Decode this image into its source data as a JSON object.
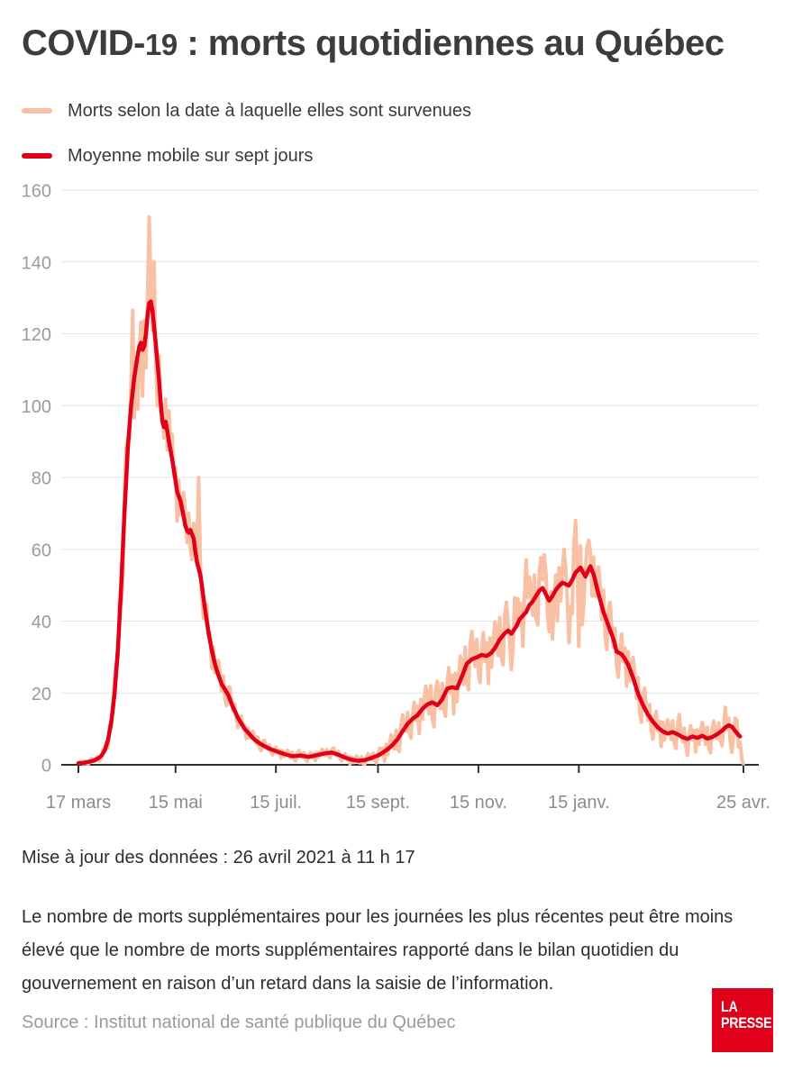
{
  "header": {
    "title_prefix": "COVID-",
    "title_number": "19",
    "title_suffix": " : morts quotidiennes au Québec"
  },
  "legend": [
    {
      "label": "Morts selon la date à laquelle elles sont survenues",
      "color": "#f9c0a4"
    },
    {
      "label": "Moyenne mobile sur sept jours",
      "color": "#e10019"
    }
  ],
  "chart_data": {
    "type": "line",
    "title": "COVID-19 : morts quotidiennes au Québec",
    "xlabel": "",
    "ylabel": "",
    "ylim": [
      0,
      160
    ],
    "yticks": [
      0,
      20,
      40,
      60,
      80,
      100,
      120,
      140,
      160
    ],
    "grid": true,
    "legend_position": "top-left",
    "x_span_days": 404,
    "xticks": [
      {
        "day": 0,
        "label": "17 mars"
      },
      {
        "day": 59,
        "label": "15 mai"
      },
      {
        "day": 120,
        "label": "15 juil."
      },
      {
        "day": 182,
        "label": "15 sept."
      },
      {
        "day": 243,
        "label": "15 nov."
      },
      {
        "day": 304,
        "label": "15 janv."
      },
      {
        "day": 404,
        "label": "25 avr."
      }
    ],
    "colors": {
      "grid": "#e3e3e3",
      "axis": "#2f2f2f",
      "tick_label": "#9b9b9b",
      "raw": "#f9c0a4",
      "average": "#e10019"
    },
    "series": [
      {
        "name": "Morts selon la date à laquelle elles sont survenues",
        "role": "raw_daily",
        "color": "#f9c0a4",
        "stroke_width": 4,
        "end_day": 404,
        "derivation": "moving_average_plus_weekly_noise",
        "noise_pattern": [
          0.35,
          0.9,
          0.5,
          -0.45,
          0.75,
          -0.7,
          -1.0,
          0.6,
          1.0,
          0.25,
          -0.3,
          0.65,
          -0.55,
          -0.95,
          0.2,
          0.8,
          -0.2,
          0.45,
          -1.0,
          0.55,
          -0.5
        ],
        "noise_amplitude_keypoints": [
          [
            0,
            0.5
          ],
          [
            10,
            0.8
          ],
          [
            16,
            1.5
          ],
          [
            22,
            4
          ],
          [
            28,
            9
          ],
          [
            34,
            12
          ],
          [
            40,
            13
          ],
          [
            48,
            12
          ],
          [
            52,
            10
          ],
          [
            58,
            8.5
          ],
          [
            64,
            7.5
          ],
          [
            70,
            7
          ],
          [
            76,
            6
          ],
          [
            82,
            5
          ],
          [
            88,
            4
          ],
          [
            95,
            3
          ],
          [
            102,
            2.2
          ],
          [
            110,
            1.8
          ],
          [
            120,
            1.4
          ],
          [
            175,
            1.4
          ],
          [
            183,
            2.2
          ],
          [
            190,
            3.5
          ],
          [
            197,
            4.5
          ],
          [
            205,
            5.5
          ],
          [
            215,
            6.5
          ],
          [
            230,
            7.5
          ],
          [
            250,
            8
          ],
          [
            270,
            8.5
          ],
          [
            285,
            9
          ],
          [
            300,
            9.5
          ],
          [
            310,
            9
          ],
          [
            320,
            8
          ],
          [
            330,
            7
          ],
          [
            340,
            6
          ],
          [
            350,
            5
          ],
          [
            358,
            4.2
          ],
          [
            372,
            4
          ],
          [
            385,
            4.2
          ],
          [
            395,
            4.5
          ],
          [
            404,
            3.5
          ]
        ],
        "overrides": [
          [
            33,
            126.5
          ],
          [
            36,
            99
          ],
          [
            41,
            110.5
          ],
          [
            43,
            152.5
          ],
          [
            44,
            133
          ],
          [
            46,
            140
          ],
          [
            47,
            112
          ],
          [
            50,
            98.5
          ],
          [
            55,
            98.5
          ],
          [
            73,
            80
          ],
          [
            263,
            26.5
          ],
          [
            265,
            46.5
          ],
          [
            272,
            57
          ],
          [
            283,
            58.5
          ],
          [
            288,
            35
          ],
          [
            295,
            60
          ],
          [
            298,
            34
          ],
          [
            301,
            61
          ],
          [
            302,
            68
          ],
          [
            304,
            33
          ],
          [
            306,
            39
          ],
          [
            310,
            62.5
          ],
          [
            312,
            47
          ],
          [
            365,
            14
          ],
          [
            370,
            2.7
          ],
          [
            393,
            16
          ],
          [
            397,
            3.5
          ],
          [
            399,
            13
          ],
          [
            401,
            5
          ],
          [
            403,
            1.5
          ],
          [
            404,
            0.3
          ]
        ]
      },
      {
        "name": "Moyenne mobile sur sept jours",
        "role": "moving_average_7d",
        "color": "#e10019",
        "stroke_width": 4.5,
        "end_day": 402,
        "keypoints": [
          [
            0,
            0.4
          ],
          [
            4,
            0.6
          ],
          [
            8,
            1.0
          ],
          [
            10,
            1.3
          ],
          [
            12,
            1.8
          ],
          [
            14,
            2.5
          ],
          [
            16,
            4
          ],
          [
            18,
            7
          ],
          [
            20,
            12
          ],
          [
            22,
            20
          ],
          [
            24,
            32
          ],
          [
            26,
            50
          ],
          [
            28,
            70
          ],
          [
            30,
            88
          ],
          [
            32,
            100
          ],
          [
            34,
            108
          ],
          [
            36,
            114
          ],
          [
            37,
            116.5
          ],
          [
            38,
            117.5
          ],
          [
            39,
            115.5
          ],
          [
            40,
            116.5
          ],
          [
            41,
            120
          ],
          [
            42,
            125
          ],
          [
            43,
            128.5
          ],
          [
            44,
            129
          ],
          [
            45,
            126.5
          ],
          [
            46,
            122
          ],
          [
            47,
            117
          ],
          [
            48,
            112
          ],
          [
            49,
            107
          ],
          [
            50,
            101
          ],
          [
            51,
            95.5
          ],
          [
            52,
            94
          ],
          [
            53,
            95.5
          ],
          [
            54,
            93
          ],
          [
            55,
            90
          ],
          [
            56,
            87.5
          ],
          [
            57,
            85
          ],
          [
            58,
            82
          ],
          [
            59,
            79
          ],
          [
            60,
            76
          ],
          [
            62,
            73.5
          ],
          [
            64,
            69
          ],
          [
            65,
            66.5
          ],
          [
            66,
            65.2
          ],
          [
            67,
            64.6
          ],
          [
            68,
            65.4
          ],
          [
            69,
            64.2
          ],
          [
            70,
            63
          ],
          [
            71,
            59.5
          ],
          [
            72,
            56.5
          ],
          [
            74,
            53
          ],
          [
            75,
            50
          ],
          [
            76,
            46.5
          ],
          [
            77,
            43
          ],
          [
            79,
            37
          ],
          [
            81,
            32
          ],
          [
            83,
            28
          ],
          [
            85,
            25
          ],
          [
            87,
            22.5
          ],
          [
            89,
            21
          ],
          [
            91,
            19.5
          ],
          [
            93,
            17
          ],
          [
            95,
            15
          ],
          [
            97,
            13
          ],
          [
            99,
            11.5
          ],
          [
            101,
            10
          ],
          [
            104,
            8.5
          ],
          [
            107,
            7
          ],
          [
            110,
            6
          ],
          [
            113,
            5.2
          ],
          [
            116,
            4.5
          ],
          [
            120,
            3.8
          ],
          [
            125,
            3.0
          ],
          [
            130,
            2.4
          ],
          [
            135,
            2.6
          ],
          [
            140,
            2.2
          ],
          [
            145,
            2.7
          ],
          [
            150,
            3.2
          ],
          [
            154,
            3.4
          ],
          [
            158,
            2.8
          ],
          [
            162,
            2.0
          ],
          [
            166,
            1.4
          ],
          [
            170,
            1.1
          ],
          [
            174,
            1.3
          ],
          [
            178,
            1.9
          ],
          [
            182,
            2.6
          ],
          [
            185,
            3.4
          ],
          [
            188,
            4.4
          ],
          [
            191,
            5.6
          ],
          [
            194,
            7.2
          ],
          [
            197,
            9.4
          ],
          [
            200,
            11.4
          ],
          [
            203,
            12.8
          ],
          [
            206,
            13.8
          ],
          [
            209,
            15.6
          ],
          [
            212,
            16.8
          ],
          [
            215,
            17.4
          ],
          [
            218,
            16.6
          ],
          [
            221,
            18.2
          ],
          [
            224,
            21.2
          ],
          [
            227,
            21.6
          ],
          [
            230,
            21.3
          ],
          [
            233,
            24.6
          ],
          [
            236,
            28.2
          ],
          [
            239,
            29.4
          ],
          [
            242,
            29.9
          ],
          [
            245,
            30.6
          ],
          [
            248,
            30.3
          ],
          [
            251,
            31.2
          ],
          [
            253,
            32.5
          ],
          [
            256,
            34.9
          ],
          [
            259,
            36.6
          ],
          [
            261,
            37.4
          ],
          [
            263,
            36.5
          ],
          [
            266,
            38.5
          ],
          [
            268,
            40.5
          ],
          [
            270,
            41.5
          ],
          [
            272,
            42.5
          ],
          [
            274,
            44.5
          ],
          [
            276,
            45.5
          ],
          [
            278,
            47
          ],
          [
            280,
            48.5
          ],
          [
            282,
            49.2
          ],
          [
            284,
            47.5
          ],
          [
            286,
            45.7
          ],
          [
            288,
            47
          ],
          [
            290,
            48.7
          ],
          [
            292,
            49.8
          ],
          [
            294,
            50.7
          ],
          [
            296,
            50.3
          ],
          [
            298,
            49.9
          ],
          [
            300,
            51.5
          ],
          [
            302,
            53.5
          ],
          [
            305,
            54.9
          ],
          [
            308,
            52.4
          ],
          [
            311,
            55.3
          ],
          [
            313,
            53
          ],
          [
            316,
            47.5
          ],
          [
            319,
            42.5
          ],
          [
            321,
            40
          ],
          [
            323,
            37.5
          ],
          [
            325,
            35
          ],
          [
            327,
            31.5
          ],
          [
            330,
            30.8
          ],
          [
            332,
            29.5
          ],
          [
            334,
            27.8
          ],
          [
            337,
            24.2
          ],
          [
            340,
            19.8
          ],
          [
            343,
            16.6
          ],
          [
            346,
            14
          ],
          [
            349,
            12
          ],
          [
            352,
            10.4
          ],
          [
            355,
            9.3
          ],
          [
            358,
            8.7
          ],
          [
            361,
            9.1
          ],
          [
            364,
            8.5
          ],
          [
            367,
            7.7
          ],
          [
            370,
            7.2
          ],
          [
            373,
            7.9
          ],
          [
            376,
            7.5
          ],
          [
            379,
            8.1
          ],
          [
            382,
            7.3
          ],
          [
            385,
            7.7
          ],
          [
            388,
            8.5
          ],
          [
            391,
            9.5
          ],
          [
            393,
            10.4
          ],
          [
            395,
            11
          ],
          [
            397,
            10.6
          ],
          [
            399,
            9.4
          ],
          [
            401,
            8.3
          ],
          [
            402,
            7.9
          ]
        ]
      }
    ]
  },
  "footer": {
    "updated": "Mise à jour des données : 26 avril 2021 à 11 h 17",
    "note": "Le nombre de morts supplémentaires pour les journées les plus récentes peut être moins élevé que le nombre de morts supplémentaires rapporté dans le bilan quotidien du gouvernement en raison d’un retard dans la saisie de l’information.",
    "source": "Source : Institut national de santé publique du Québec",
    "logo_line1": "LA",
    "logo_line2": "PRESSE",
    "logo_color": "#e00019"
  }
}
